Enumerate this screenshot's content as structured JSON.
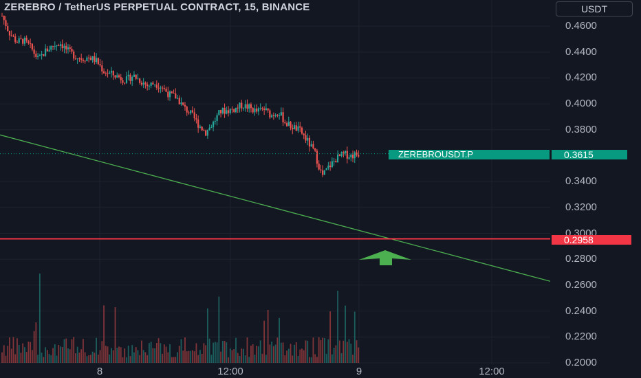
{
  "header": {
    "title": "ZEREBRO / TetherUS PERPETUAL CONTRACT, 15, BINANCE",
    "currency": "USDT"
  },
  "price_axis": {
    "ticks": [
      "0.4600",
      "0.4400",
      "0.4200",
      "0.4000",
      "0.3800",
      "0.3400",
      "0.3200",
      "0.3000",
      "0.2800",
      "0.2600",
      "0.2400",
      "0.2200",
      "0.2000"
    ]
  },
  "time_axis": {
    "ticks": [
      "8",
      "12:00",
      "9",
      "12:00"
    ]
  },
  "labels": {
    "symbol": "ZEREBROUSDT.P",
    "last_price": "0.3615",
    "level_price": "0.2958"
  },
  "colors": {
    "background": "#131722",
    "up": "#26a69a",
    "down": "#ef5350",
    "level": "#f23645",
    "trendline": "#4caf50",
    "arrow": "#4caf50"
  },
  "chart_data": {
    "type": "candlestick",
    "ylim": [
      0.2,
      0.47
    ],
    "level_line": 0.2958,
    "last_price": 0.3615,
    "trendline": {
      "from": [
        0,
        0.376
      ],
      "to": [
        1,
        0.263
      ]
    },
    "close_path": [
      0.468,
      0.455,
      0.448,
      0.449,
      0.443,
      0.434,
      0.441,
      0.445,
      0.447,
      0.441,
      0.437,
      0.435,
      0.436,
      0.433,
      0.425,
      0.423,
      0.421,
      0.418,
      0.422,
      0.418,
      0.414,
      0.416,
      0.413,
      0.407,
      0.405,
      0.397,
      0.392,
      0.384,
      0.378,
      0.385,
      0.394,
      0.395,
      0.396,
      0.399,
      0.397,
      0.394,
      0.396,
      0.391,
      0.394,
      0.385,
      0.382,
      0.379,
      0.371,
      0.362,
      0.344,
      0.352,
      0.358,
      0.361,
      0.36,
      0.3615
    ]
  }
}
